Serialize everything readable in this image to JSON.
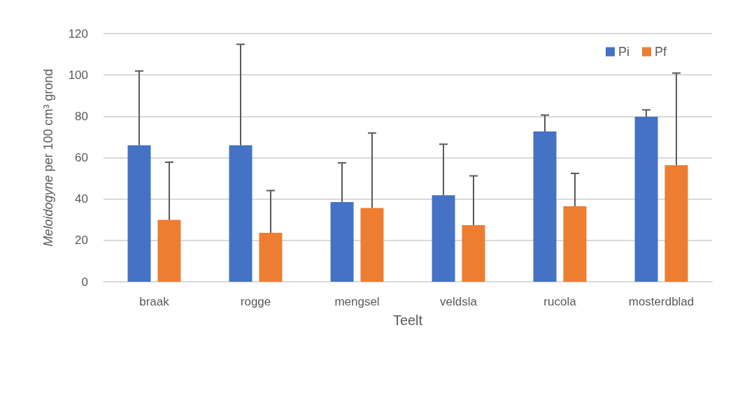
{
  "chart_data": {
    "type": "bar",
    "xlabel": "Teelt",
    "ylabel": "Meloidogyne per 100 cm³ grond",
    "categories": [
      "braak",
      "rogge",
      "mengsel",
      "veldsla",
      "rucola",
      "mosterdblad"
    ],
    "series": [
      {
        "name": "Pi",
        "color": "#4472c4",
        "values": [
          66,
          66,
          38.5,
          41.8,
          72.7,
          79.8
        ],
        "errors": [
          [
            66,
            101.9
          ],
          [
            66,
            114.8
          ],
          [
            38.5,
            57.5
          ],
          [
            41.8,
            66.5
          ],
          [
            72.7,
            80.6
          ],
          [
            79.8,
            83.1
          ]
        ]
      },
      {
        "name": "Pf",
        "color": "#ed7d31",
        "values": [
          29.9,
          23.7,
          35.7,
          27.4,
          36.5,
          56.4
        ],
        "errors": [
          [
            29.9,
            57.8
          ],
          [
            23.7,
            44.1
          ],
          [
            35.7,
            71.9
          ],
          [
            27.4,
            51.2
          ],
          [
            36.5,
            52.4
          ],
          [
            56.4,
            100.9
          ]
        ]
      }
    ],
    "ylim": [
      0,
      120
    ],
    "yticks": [
      0,
      20,
      40,
      60,
      80,
      100,
      120
    ],
    "grid": "y",
    "legend": "top right"
  }
}
